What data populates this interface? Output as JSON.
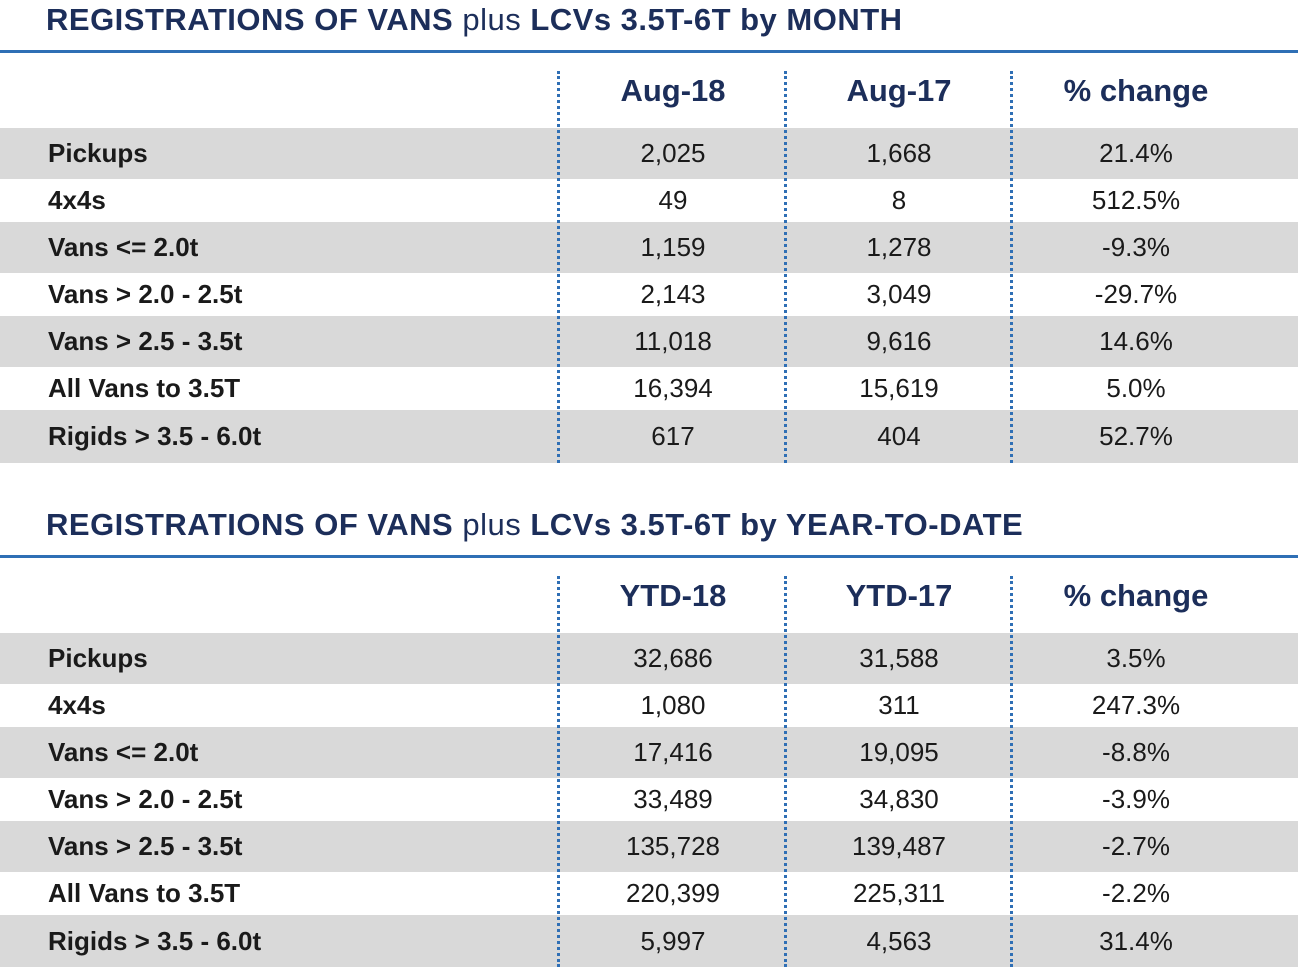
{
  "tables": [
    {
      "title_bold_1": "REGISTRATIONS OF VANS",
      "title_plus": "plus",
      "title_bold_2": "LCVs 3.5T-6T by MONTH",
      "columns": [
        "Aug-18",
        "Aug-17",
        "% change"
      ],
      "rows": [
        {
          "label": "Pickups",
          "values": [
            "2,025",
            "1,668",
            "21.4%"
          ]
        },
        {
          "label": "4x4s",
          "values": [
            "49",
            "8",
            "512.5%"
          ]
        },
        {
          "label": "Vans <= 2.0t",
          "values": [
            "1,159",
            "1,278",
            "-9.3%"
          ]
        },
        {
          "label": "Vans > 2.0 - 2.5t",
          "values": [
            "2,143",
            "3,049",
            "-29.7%"
          ]
        },
        {
          "label": "Vans > 2.5 - 3.5t",
          "values": [
            "11,018",
            "9,616",
            "14.6%"
          ]
        },
        {
          "label": "All Vans to 3.5T",
          "values": [
            "16,394",
            "15,619",
            "5.0%"
          ]
        },
        {
          "label": "Rigids > 3.5 - 6.0t",
          "values": [
            "617",
            "404",
            "52.7%"
          ]
        }
      ]
    },
    {
      "title_bold_1": "REGISTRATIONS OF VANS",
      "title_plus": "plus",
      "title_bold_2": "LCVs 3.5T-6T by YEAR-TO-DATE",
      "columns": [
        "YTD-18",
        "YTD-17",
        "% change"
      ],
      "rows": [
        {
          "label": "Pickups",
          "values": [
            "32,686",
            "31,588",
            "3.5%"
          ]
        },
        {
          "label": "4x4s",
          "values": [
            "1,080",
            "311",
            "247.3%"
          ]
        },
        {
          "label": "Vans <= 2.0t",
          "values": [
            "17,416",
            "19,095",
            "-8.8%"
          ]
        },
        {
          "label": "Vans > 2.0 - 2.5t",
          "values": [
            "33,489",
            "34,830",
            "-3.9%"
          ]
        },
        {
          "label": "Vans > 2.5 - 3.5t",
          "values": [
            "135,728",
            "139,487",
            "-2.7%"
          ]
        },
        {
          "label": "All Vans to 3.5T",
          "values": [
            "220,399",
            "225,311",
            "-2.2%"
          ]
        },
        {
          "label": "Rigids > 3.5 - 6.0t",
          "values": [
            "5,997",
            "4,563",
            "31.4%"
          ]
        }
      ]
    }
  ],
  "colors": {
    "title": "#1c2e5a",
    "accent": "#2f6fb5",
    "row_shade": "#d9d9d9"
  },
  "chart_data": [
    {
      "type": "table",
      "title": "REGISTRATIONS OF VANS plus LCVs 3.5T-6T by MONTH",
      "columns": [
        "Aug-18",
        "Aug-17",
        "% change"
      ],
      "categories": [
        "Pickups",
        "4x4s",
        "Vans <= 2.0t",
        "Vans > 2.0 - 2.5t",
        "Vans > 2.5 - 3.5t",
        "All Vans to 3.5T",
        "Rigids > 3.5 - 6.0t"
      ],
      "series": [
        {
          "name": "Aug-18",
          "values": [
            2025,
            49,
            1159,
            2143,
            11018,
            16394,
            617
          ]
        },
        {
          "name": "Aug-17",
          "values": [
            1668,
            8,
            1278,
            3049,
            9616,
            15619,
            404
          ]
        },
        {
          "name": "% change",
          "values": [
            21.4,
            512.5,
            -9.3,
            -29.7,
            14.6,
            5.0,
            52.7
          ]
        }
      ]
    },
    {
      "type": "table",
      "title": "REGISTRATIONS OF VANS plus LCVs 3.5T-6T by YEAR-TO-DATE",
      "columns": [
        "YTD-18",
        "YTD-17",
        "% change"
      ],
      "categories": [
        "Pickups",
        "4x4s",
        "Vans <= 2.0t",
        "Vans > 2.0 - 2.5t",
        "Vans > 2.5 - 3.5t",
        "All Vans to 3.5T",
        "Rigids > 3.5 - 6.0t"
      ],
      "series": [
        {
          "name": "YTD-18",
          "values": [
            32686,
            1080,
            17416,
            33489,
            135728,
            220399,
            5997
          ]
        },
        {
          "name": "YTD-17",
          "values": [
            31588,
            311,
            19095,
            34830,
            139487,
            225311,
            4563
          ]
        },
        {
          "name": "% change",
          "values": [
            3.5,
            247.3,
            -8.8,
            -3.9,
            -2.7,
            -2.2,
            31.4
          ]
        }
      ]
    }
  ]
}
